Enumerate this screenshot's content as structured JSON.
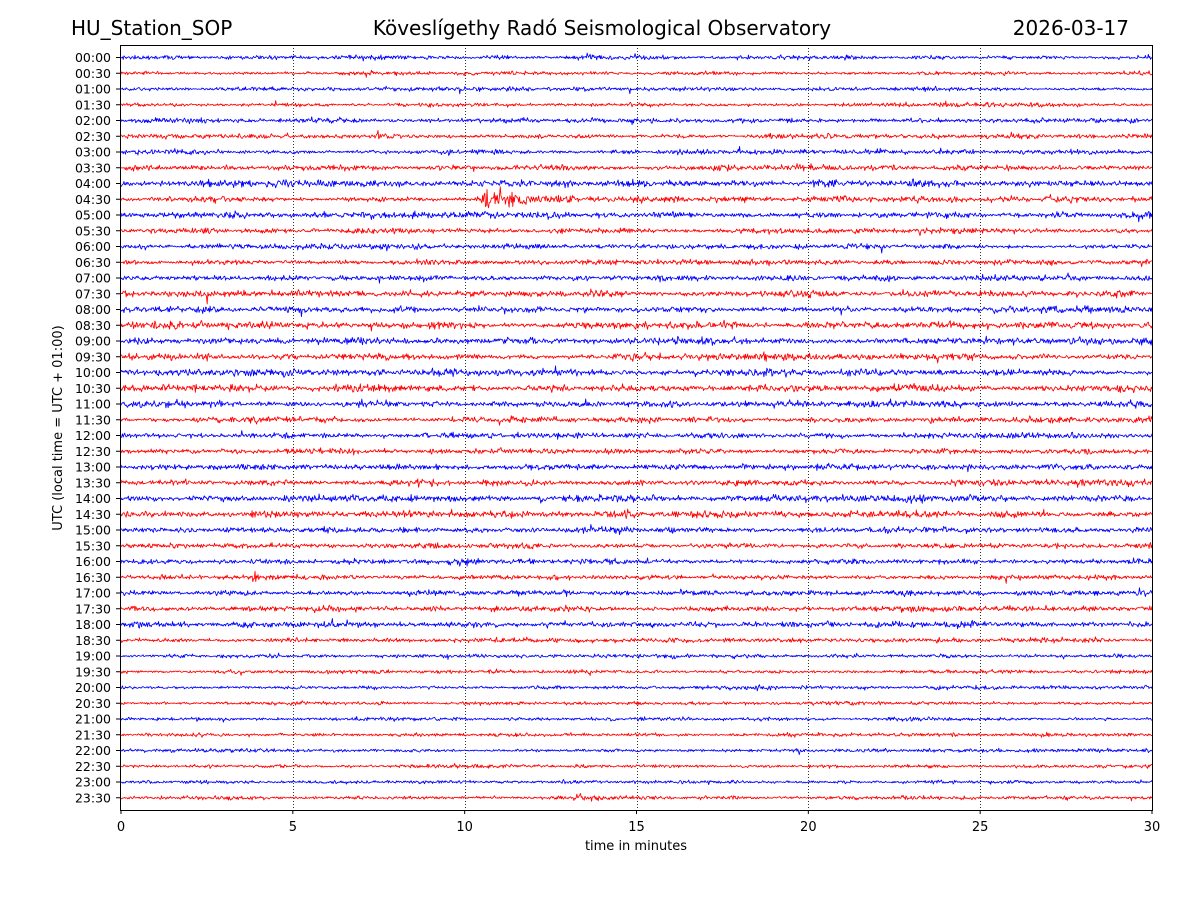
{
  "header": {
    "station": "HU_Station_SOP",
    "title": "Köveslígethy Radó Seismological Observatory",
    "date": "2026-03-17"
  },
  "chart_data": {
    "type": "line",
    "title": "Köveslígethy Radó Seismological Observatory",
    "xlabel": "time in minutes",
    "ylabel": "UTC (local time = UTC + 01:00)",
    "xlim": [
      0,
      30
    ],
    "xticks": [
      "0",
      "5",
      "10",
      "15",
      "20",
      "25",
      "30"
    ],
    "xtick_values": [
      0,
      5,
      10,
      15,
      20,
      25,
      30
    ],
    "grid": "vertical dotted lines at each x tick",
    "trace_colors": [
      "#0000ff",
      "#ff0000"
    ],
    "rows": [
      "00:00",
      "00:30",
      "01:00",
      "01:30",
      "02:00",
      "02:30",
      "03:00",
      "03:30",
      "04:00",
      "04:30",
      "05:00",
      "05:30",
      "06:00",
      "06:30",
      "07:00",
      "07:30",
      "08:00",
      "08:30",
      "09:00",
      "09:30",
      "10:00",
      "10:30",
      "11:00",
      "11:30",
      "12:00",
      "12:30",
      "13:00",
      "13:30",
      "14:00",
      "14:30",
      "15:00",
      "15:30",
      "16:00",
      "16:30",
      "17:00",
      "17:30",
      "18:00",
      "18:30",
      "19:00",
      "19:30",
      "20:00",
      "20:30",
      "21:00",
      "21:30",
      "22:00",
      "22:30",
      "23:00",
      "23:30"
    ],
    "base_amplitude": [
      0.35,
      0.35,
      0.35,
      0.35,
      0.4,
      0.4,
      0.4,
      0.45,
      0.6,
      0.5,
      0.55,
      0.45,
      0.45,
      0.45,
      0.5,
      0.55,
      0.6,
      0.6,
      0.6,
      0.6,
      0.6,
      0.6,
      0.55,
      0.5,
      0.5,
      0.5,
      0.5,
      0.5,
      0.55,
      0.55,
      0.5,
      0.45,
      0.45,
      0.4,
      0.45,
      0.45,
      0.5,
      0.4,
      0.35,
      0.35,
      0.35,
      0.3,
      0.3,
      0.3,
      0.3,
      0.3,
      0.3,
      0.3
    ],
    "events": [
      {
        "row": "02:30",
        "start_min": 7.3,
        "end_min": 8.5,
        "peak": 0.9
      },
      {
        "row": "03:30",
        "start_min": 6.9,
        "end_min": 7.1,
        "peak": 1.2
      },
      {
        "row": "03:30",
        "start_min": 10.0,
        "end_min": 10.6,
        "peak": 0.9
      },
      {
        "row": "04:00",
        "start_min": 20.0,
        "end_min": 21.0,
        "peak": 1.0
      },
      {
        "row": "04:30",
        "start_min": 10.3,
        "end_min": 12.5,
        "peak": 2.6
      },
      {
        "row": "14:00",
        "start_min": 12.1,
        "end_min": 12.6,
        "peak": 1.0
      },
      {
        "row": "14:30",
        "start_min": 14.6,
        "end_min": 15.1,
        "peak": 1.3
      },
      {
        "row": "16:00",
        "start_min": 11.9,
        "end_min": 12.2,
        "peak": 1.0
      },
      {
        "row": "16:30",
        "start_min": 3.8,
        "end_min": 4.3,
        "peak": 1.6
      },
      {
        "row": "23:30",
        "start_min": 13.0,
        "end_min": 15.5,
        "peak": 0.7
      }
    ]
  }
}
